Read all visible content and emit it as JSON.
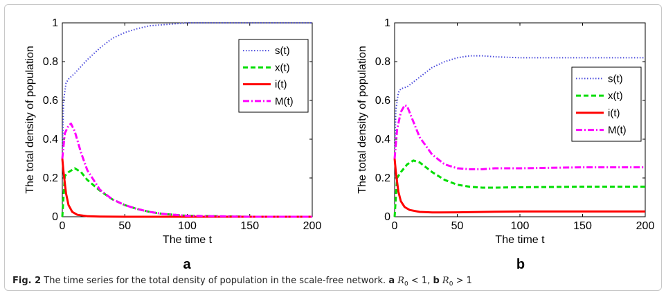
{
  "chart_data": [
    {
      "type": "line",
      "panel_label": "a",
      "xlabel": "The time t",
      "ylabel": "The total density of population",
      "xlim": [
        0,
        200
      ],
      "ylim": [
        0,
        1
      ],
      "xticks": [
        0,
        50,
        100,
        150,
        200
      ],
      "yticks": [
        0,
        0.2,
        0.4,
        0.6,
        0.8,
        1
      ],
      "legend_position": "top-right",
      "series": [
        {
          "name": "s(t)",
          "color": "#4a4adc",
          "style": "dotted",
          "x": [
            0,
            1,
            3,
            5,
            10,
            20,
            30,
            40,
            50,
            60,
            70,
            80,
            100,
            150,
            200
          ],
          "y": [
            0.3,
            0.6,
            0.69,
            0.71,
            0.74,
            0.81,
            0.87,
            0.92,
            0.95,
            0.97,
            0.985,
            0.99,
            1.0,
            1.0,
            1.0
          ]
        },
        {
          "name": "x(t)",
          "color": "#00dd00",
          "style": "dashed",
          "x": [
            0,
            2,
            5,
            10,
            15,
            20,
            30,
            40,
            50,
            60,
            70,
            80,
            100,
            150,
            200
          ],
          "y": [
            0.0,
            0.21,
            0.23,
            0.25,
            0.23,
            0.19,
            0.135,
            0.09,
            0.06,
            0.04,
            0.025,
            0.015,
            0.005,
            0.0,
            0.0
          ]
        },
        {
          "name": "i(t)",
          "color": "#ff0000",
          "style": "solid",
          "x": [
            0,
            1,
            3,
            5,
            8,
            12,
            20,
            30,
            50,
            100,
            200
          ],
          "y": [
            0.3,
            0.23,
            0.12,
            0.06,
            0.025,
            0.01,
            0.003,
            0.001,
            0.0,
            0.0,
            0.0
          ]
        },
        {
          "name": "M(t)",
          "color": "#ff00ff",
          "style": "dashdot",
          "x": [
            0,
            2,
            5,
            7,
            10,
            15,
            20,
            30,
            40,
            50,
            60,
            70,
            80,
            100,
            150,
            200
          ],
          "y": [
            0.3,
            0.43,
            0.47,
            0.48,
            0.44,
            0.33,
            0.24,
            0.14,
            0.09,
            0.06,
            0.04,
            0.025,
            0.015,
            0.005,
            0.0,
            0.0
          ]
        }
      ]
    },
    {
      "type": "line",
      "panel_label": "b",
      "xlabel": "The time t",
      "ylabel": "The total density of population",
      "xlim": [
        0,
        200
      ],
      "ylim": [
        0,
        1
      ],
      "xticks": [
        0,
        50,
        100,
        150,
        200
      ],
      "yticks": [
        0,
        0.2,
        0.4,
        0.6,
        0.8,
        1
      ],
      "legend_position": "right",
      "series": [
        {
          "name": "s(t)",
          "color": "#4a4adc",
          "style": "dotted",
          "x": [
            0,
            1,
            3,
            5,
            10,
            20,
            30,
            40,
            50,
            60,
            70,
            80,
            100,
            150,
            200
          ],
          "y": [
            0.3,
            0.55,
            0.64,
            0.66,
            0.67,
            0.72,
            0.77,
            0.8,
            0.82,
            0.83,
            0.83,
            0.825,
            0.82,
            0.82,
            0.82
          ]
        },
        {
          "name": "x(t)",
          "color": "#00dd00",
          "style": "dashed",
          "x": [
            0,
            2,
            5,
            10,
            15,
            20,
            30,
            40,
            50,
            60,
            70,
            80,
            100,
            150,
            200
          ],
          "y": [
            0.0,
            0.2,
            0.23,
            0.27,
            0.29,
            0.28,
            0.23,
            0.19,
            0.165,
            0.155,
            0.15,
            0.15,
            0.152,
            0.155,
            0.155
          ]
        },
        {
          "name": "i(t)",
          "color": "#ff0000",
          "style": "solid",
          "x": [
            0,
            1,
            3,
            5,
            8,
            12,
            20,
            30,
            50,
            80,
            100,
            150,
            200
          ],
          "y": [
            0.3,
            0.23,
            0.13,
            0.08,
            0.05,
            0.035,
            0.025,
            0.022,
            0.023,
            0.026,
            0.027,
            0.027,
            0.027
          ]
        },
        {
          "name": "M(t)",
          "color": "#ff00ff",
          "style": "dashdot",
          "x": [
            0,
            2,
            5,
            8,
            10,
            15,
            20,
            30,
            40,
            50,
            60,
            70,
            80,
            100,
            150,
            200
          ],
          "y": [
            0.3,
            0.45,
            0.54,
            0.575,
            0.57,
            0.49,
            0.41,
            0.32,
            0.27,
            0.25,
            0.245,
            0.245,
            0.25,
            0.25,
            0.255,
            0.255
          ]
        }
      ]
    }
  ],
  "caption": {
    "fig_label": "Fig. 2",
    "text": "The time series for the total density of population in the scale-free network.",
    "part_a_label": "a",
    "part_a_cond": "R",
    "part_a_rel": " < 1,",
    "part_b_label": "b",
    "part_b_cond": "R",
    "part_b_rel": " > 1",
    "subscript": "0"
  }
}
